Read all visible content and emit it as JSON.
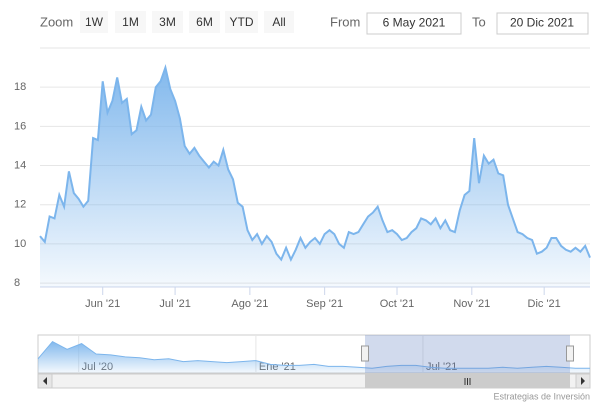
{
  "range_selector": {
    "zoom_label": "Zoom",
    "buttons": [
      "1W",
      "1M",
      "3M",
      "6M",
      "YTD",
      "All"
    ],
    "from_label": "From",
    "from": "6 May 2021",
    "to_label": "To",
    "to": "20 Dic 2021"
  },
  "chart_data": {
    "type": "area",
    "color": "#7cb5ec",
    "grid": true,
    "values": [
      10.4,
      10.1,
      11.4,
      11.3,
      12.5,
      11.9,
      13.7,
      12.6,
      12.3,
      11.9,
      12.2,
      15.4,
      15.3,
      18.3,
      16.7,
      17.3,
      18.5,
      17.2,
      17.4,
      15.6,
      15.8,
      17.0,
      16.3,
      16.6,
      18.0,
      18.3,
      19.0,
      17.9,
      17.3,
      16.4,
      15.0,
      14.6,
      14.9,
      14.5,
      14.2,
      13.9,
      14.2,
      14.0,
      14.8,
      13.8,
      13.3,
      12.1,
      11.9,
      10.7,
      10.2,
      10.5,
      10.0,
      10.4,
      10.1,
      9.5,
      9.2,
      9.8,
      9.2,
      9.7,
      10.3,
      9.8,
      10.1,
      10.3,
      10.0,
      10.5,
      10.7,
      10.5,
      10.0,
      9.8,
      10.6,
      10.5,
      10.6,
      11.0,
      11.4,
      11.6,
      11.9,
      11.2,
      10.6,
      10.7,
      10.5,
      10.2,
      10.3,
      10.6,
      10.8,
      11.3,
      11.2,
      11.0,
      11.3,
      10.8,
      11.2,
      10.7,
      10.6,
      11.7,
      12.5,
      12.7,
      15.4,
      13.1,
      14.5,
      14.1,
      14.3,
      13.6,
      13.5,
      12.0,
      11.3,
      10.6,
      10.5,
      10.3,
      10.2,
      9.5,
      9.6,
      9.8,
      10.3,
      10.3,
      9.9,
      9.7,
      9.6,
      9.8,
      9.6,
      9.9,
      9.3
    ],
    "xlim": [
      0,
      114
    ],
    "xticks": [
      {
        "value": 13,
        "label": "Jun '21"
      },
      {
        "value": 28,
        "label": "Jul '21"
      },
      {
        "value": 43.5,
        "label": "Ago '21"
      },
      {
        "value": 59,
        "label": "Sep '21"
      },
      {
        "value": 74,
        "label": "Oct '21"
      },
      {
        "value": 89.5,
        "label": "Nov '21"
      },
      {
        "value": 104.5,
        "label": "Dic '21"
      }
    ],
    "ylim": [
      7.8,
      20
    ],
    "yticks": [
      8,
      10,
      12,
      14,
      16,
      18
    ],
    "navigator": {
      "values": [
        20,
        38,
        30,
        36,
        25,
        24,
        22,
        21,
        19,
        20,
        17,
        18,
        17,
        16,
        17,
        18,
        14,
        13,
        13,
        14,
        12,
        12,
        11,
        10,
        12,
        13,
        13,
        11,
        10,
        10,
        10,
        10,
        11,
        10,
        11,
        12,
        11,
        10,
        10
      ],
      "xlim": [
        0,
        38
      ],
      "ylim": [
        5,
        45
      ],
      "xticks": [
        {
          "value": 2.8,
          "label": "Jul '20"
        },
        {
          "value": 15,
          "label": "Ene '21"
        },
        {
          "value": 26.5,
          "label": "Jul '21"
        }
      ]
    }
  },
  "credits": "Estrategias de Inversión"
}
